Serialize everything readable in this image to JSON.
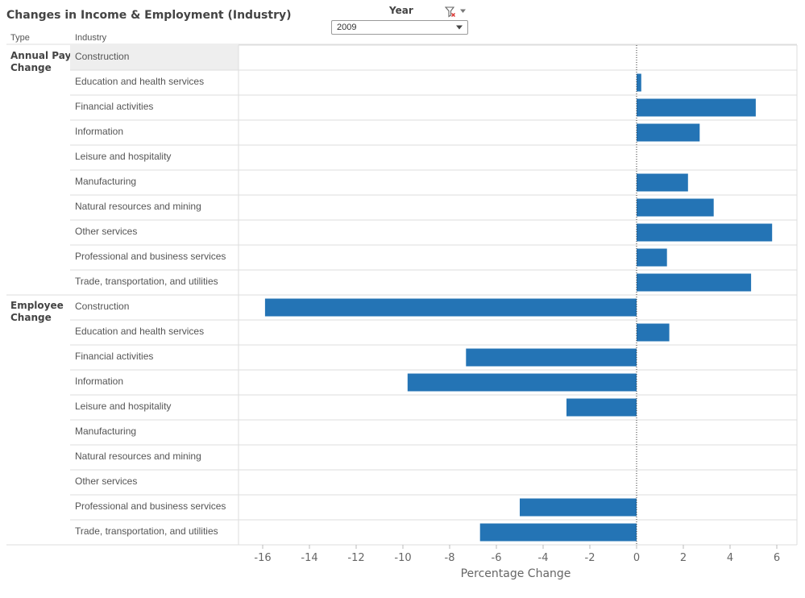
{
  "title": "Changes in Income & Employment (Industry)",
  "filter": {
    "label": "Year",
    "selected": "2009",
    "icon": "filter-clear-icon",
    "menu_icon": "dropdown-caret-icon"
  },
  "headers": {
    "type": "Type",
    "industry": "Industry"
  },
  "colors": {
    "bar": "#2474b5",
    "highlight": "#eeeeee",
    "gridline": "#dddddd",
    "zero_line": "#333333"
  },
  "chart_data": {
    "type": "bar",
    "orientation": "horizontal",
    "xlabel": "Percentage Change",
    "xlim": [
      -17,
      7
    ],
    "xticks": [
      -16,
      -14,
      -12,
      -10,
      -8,
      -6,
      -4,
      -2,
      0,
      2,
      4,
      6
    ],
    "categories": [
      "Construction",
      "Education and health services",
      "Financial activities",
      "Information",
      "Leisure and hospitality",
      "Manufacturing",
      "Natural resources and mining",
      "Other services",
      "Professional and business services",
      "Trade, transportation, and utilities"
    ],
    "groups": [
      {
        "name": "Annual Pay Change",
        "label_lines": [
          "Annual Pay",
          "Change"
        ],
        "values": [
          0,
          0.2,
          5.1,
          2.7,
          0,
          2.2,
          3.3,
          5.8,
          1.3,
          4.9
        ]
      },
      {
        "name": "Employee Change",
        "label_lines": [
          "Employee",
          "Change"
        ],
        "values": [
          -15.9,
          1.4,
          -7.3,
          -9.8,
          -3.0,
          0,
          0,
          0,
          -5.0,
          -6.7
        ]
      }
    ],
    "highlighted": {
      "group": 0,
      "row": 0
    }
  }
}
